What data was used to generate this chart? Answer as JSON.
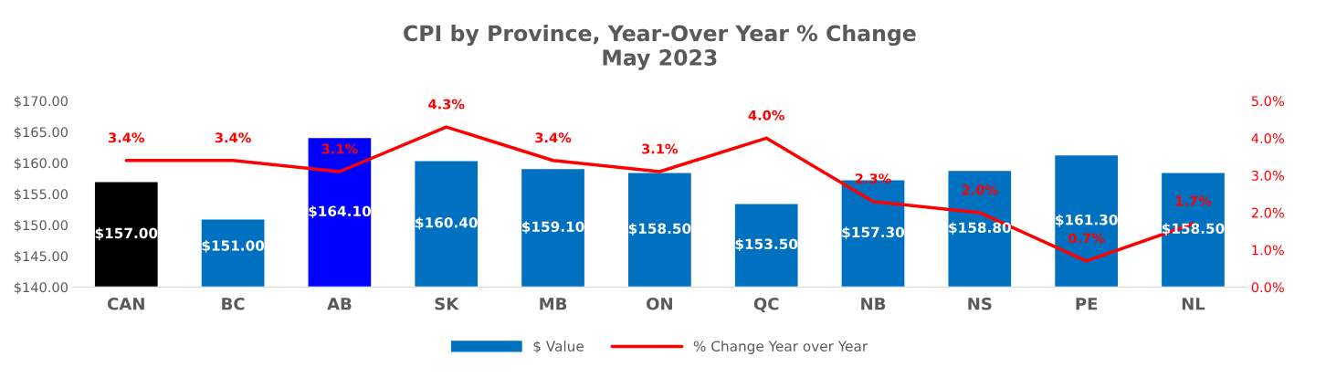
{
  "chart_data": {
    "type": "bar",
    "title": "CPI by Province, Year-Over Year % Change\nMay 2023",
    "categories": [
      "CAN",
      "BC",
      "AB",
      "SK",
      "MB",
      "ON",
      "QC",
      "NB",
      "NS",
      "PE",
      "NL"
    ],
    "series": [
      {
        "name": "$ Value",
        "color": "#0070c0",
        "colors": [
          "#000000",
          "#0070c0",
          "#0000ff",
          "#0070c0",
          "#0070c0",
          "#0070c0",
          "#0070c0",
          "#0070c0",
          "#0070c0",
          "#0070c0",
          "#0070c0"
        ],
        "values": [
          157.0,
          151.0,
          164.1,
          160.4,
          159.1,
          158.5,
          153.5,
          157.3,
          158.8,
          161.3,
          158.5
        ],
        "value_labels": [
          "$157.00",
          "$151.00",
          "$164.10",
          "$160.40",
          "$159.10",
          "$158.50",
          "$153.50",
          "$157.30",
          "$158.80",
          "$161.30",
          "$158.50"
        ]
      },
      {
        "name": "% Change Year over Year",
        "type": "line",
        "axis": "y2",
        "color": "#ff0000",
        "values": [
          3.4,
          3.4,
          3.1,
          4.3,
          3.4,
          3.1,
          4.0,
          2.3,
          2.0,
          0.7,
          1.7
        ],
        "value_labels": [
          "3.4%",
          "3.4%",
          "3.1%",
          "4.3%",
          "3.4%",
          "3.1%",
          "4.0%",
          "2.3%",
          "2.0%",
          "0.7%",
          "1.7%"
        ]
      }
    ],
    "ylim": [
      140,
      170
    ],
    "yticks": [
      {
        "value": 140,
        "label": "$140.00"
      },
      {
        "value": 145,
        "label": "$145.00"
      },
      {
        "value": 150,
        "label": "$150.00"
      },
      {
        "value": 155,
        "label": "$155.00"
      },
      {
        "value": 160,
        "label": "$160.00"
      },
      {
        "value": 165,
        "label": "$165.00"
      },
      {
        "value": 170,
        "label": "$170.00"
      }
    ],
    "y2lim": [
      0,
      5
    ],
    "y2ticks": [
      {
        "value": 0,
        "label": "0.0%"
      },
      {
        "value": 1,
        "label": "1.0%"
      },
      {
        "value": 2,
        "label": "2.0%"
      },
      {
        "value": 3,
        "label": "3.0%"
      },
      {
        "value": 4,
        "label": "4.0%"
      },
      {
        "value": 5,
        "label": "5.0%"
      }
    ],
    "grid": false,
    "legend": "bottom",
    "marker": "none",
    "line_style": "solid"
  }
}
